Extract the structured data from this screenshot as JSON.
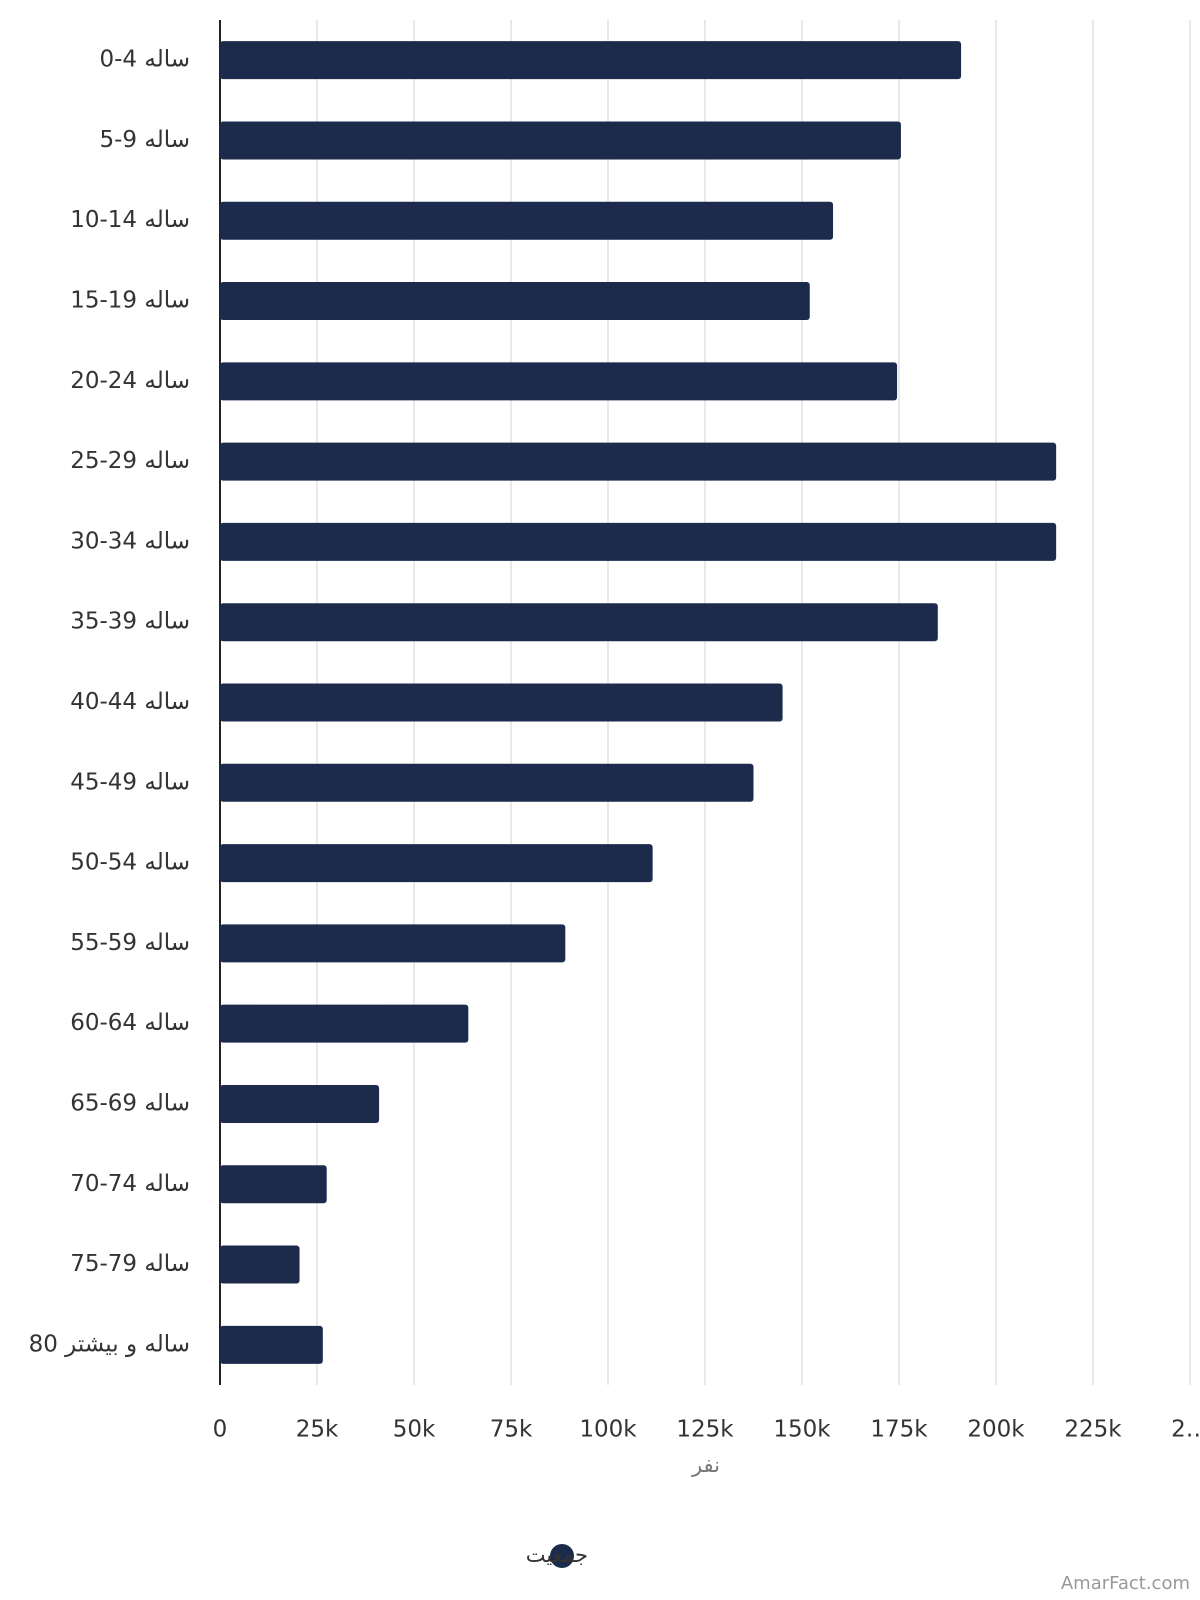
{
  "chart_data": {
    "type": "bar",
    "orientation": "horizontal",
    "categories": [
      "0-4 ساله",
      "5-9 ساله",
      "10-14 ساله",
      "15-19 ساله",
      "20-24 ساله",
      "25-29 ساله",
      "30-34 ساله",
      "35-39 ساله",
      "40-44 ساله",
      "45-49 ساله",
      "50-54 ساله",
      "55-59 ساله",
      "60-64 ساله",
      "65-69 ساله",
      "70-74 ساله",
      "75-79 ساله",
      "80 ساله و بیشتر"
    ],
    "series": [
      {
        "name": "جمعیت",
        "color": "#1c2a4c",
        "values": [
          191000,
          175500,
          158000,
          152000,
          174500,
          215500,
          215500,
          185000,
          145000,
          137500,
          111500,
          89000,
          64000,
          41000,
          27500,
          20500,
          26500
        ]
      }
    ],
    "xlabel": "نفر",
    "xlim": [
      0,
      250000
    ],
    "xticks": [
      0,
      {
        "value": 25000,
        "label": "25k"
      },
      {
        "value": 50000,
        "label": "50k"
      },
      {
        "value": 75000,
        "label": "75k"
      },
      {
        "value": 100000,
        "label": "100k"
      },
      {
        "value": 125000,
        "label": "125k"
      },
      {
        "value": 150000,
        "label": "150k"
      },
      {
        "value": 175000,
        "label": "175k"
      },
      {
        "value": 200000,
        "label": "200k"
      },
      {
        "value": 225000,
        "label": "225k"
      },
      {
        "value": 250000,
        "label": "2…"
      }
    ],
    "grid": true,
    "legend": "bottom",
    "source": "AmarFact.com"
  }
}
